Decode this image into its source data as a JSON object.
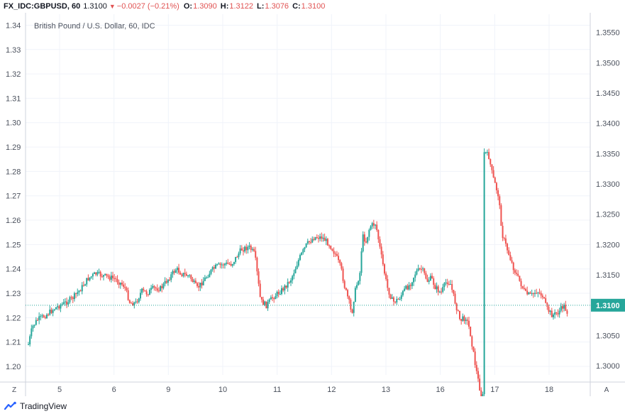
{
  "header": {
    "symbol": "FX_IDC:GBPUSD, 60",
    "last": "1.3100",
    "change": "−0.0027 (−0.21%)",
    "o_label": "O:",
    "o": "1.3090",
    "h_label": "H:",
    "h": "1.3122",
    "l_label": "L:",
    "l": "1.3076",
    "c_label": "C:",
    "c": "1.3100"
  },
  "footer": {
    "brand": "TradingView"
  },
  "colors": {
    "up": "#26a69a",
    "down": "#ef5350",
    "grid": "#f0f3fa",
    "axis": "#cfd3dc",
    "price_line": "#26a69a",
    "text": "#4c525e"
  },
  "icons": {
    "logo": "tradingview-logo-icon",
    "down_arrow": "triangle-down-icon"
  },
  "chart_data": {
    "type": "candlestick",
    "title": "British Pound / U.S. Dollar, 60, IDC",
    "x_ticks": [
      "5",
      "6",
      "9",
      "10",
      "11",
      "12",
      "13",
      "16",
      "17",
      "18"
    ],
    "left_axis": {
      "ticks": [
        "1.20",
        "1.21",
        "1.22",
        "1.23",
        "1.24",
        "1.25",
        "1.26",
        "1.27",
        "1.28",
        "1.29",
        "1.30",
        "1.31",
        "1.32",
        "1.33",
        "1.34"
      ],
      "range": [
        1.1965,
        1.3445
      ]
    },
    "right_axis": {
      "ticks": [
        "1.3000",
        "1.3050",
        "1.3100",
        "1.3150",
        "1.3200",
        "1.3250",
        "1.3300",
        "1.3350",
        "1.3400",
        "1.3450",
        "1.3500",
        "1.3550"
      ],
      "range": [
        1.2985,
        1.358
      ]
    },
    "last_price": "1.3100",
    "last_price_value": 1.31,
    "left_price_value": 1.2205,
    "scale_corner_left": "Z",
    "scale_corner_right": "A",
    "series_path": [
      [
        0,
        1.209
      ],
      [
        4,
        1.216
      ],
      [
        9,
        1.219
      ],
      [
        18,
        1.221
      ],
      [
        28,
        1.224
      ],
      [
        38,
        1.226
      ],
      [
        46,
        1.228
      ],
      [
        55,
        1.232
      ],
      [
        62,
        1.236
      ],
      [
        70,
        1.238
      ],
      [
        80,
        1.237
      ],
      [
        90,
        1.236
      ],
      [
        100,
        1.233
      ],
      [
        106,
        1.226
      ],
      [
        112,
        1.226
      ],
      [
        118,
        1.231
      ],
      [
        124,
        1.23
      ],
      [
        130,
        1.232
      ],
      [
        138,
        1.232
      ],
      [
        146,
        1.236
      ],
      [
        154,
        1.24
      ],
      [
        160,
        1.238
      ],
      [
        168,
        1.237
      ],
      [
        176,
        1.232
      ],
      [
        184,
        1.236
      ],
      [
        190,
        1.239
      ],
      [
        196,
        1.241
      ],
      [
        204,
        1.242
      ],
      [
        212,
        1.242
      ],
      [
        222,
        1.248
      ],
      [
        230,
        1.249
      ],
      [
        236,
        1.246
      ],
      [
        242,
        1.227
      ],
      [
        248,
        1.225
      ],
      [
        254,
        1.228
      ],
      [
        260,
        1.23
      ],
      [
        266,
        1.232
      ],
      [
        274,
        1.236
      ],
      [
        282,
        1.244
      ],
      [
        290,
        1.25
      ],
      [
        298,
        1.253
      ],
      [
        306,
        1.253
      ],
      [
        314,
        1.25
      ],
      [
        320,
        1.246
      ],
      [
        326,
        1.24
      ],
      [
        330,
        1.232
      ],
      [
        334,
        1.227
      ],
      [
        337,
        1.221
      ],
      [
        340,
        1.23
      ],
      [
        344,
        1.236
      ],
      [
        346,
        1.239
      ],
      [
        348,
        1.3215
      ],
      [
        352,
        1.3205
      ],
      [
        356,
        1.323
      ],
      [
        362,
        1.3235
      ],
      [
        368,
        1.318
      ],
      [
        374,
        1.313
      ],
      [
        380,
        1.3105
      ],
      [
        386,
        1.311
      ],
      [
        392,
        1.3125
      ],
      [
        398,
        1.3135
      ],
      [
        404,
        1.3155
      ],
      [
        410,
        1.316
      ],
      [
        416,
        1.314
      ],
      [
        420,
        1.3145
      ],
      [
        424,
        1.313
      ],
      [
        430,
        1.312
      ],
      [
        436,
        1.314
      ],
      [
        440,
        1.3135
      ],
      [
        444,
        1.311
      ],
      [
        450,
        1.3075
      ],
      [
        456,
        1.308
      ],
      [
        460,
        1.306
      ],
      [
        466,
        1.3
      ],
      [
        472,
        1.295
      ],
      [
        476,
        1.288
      ],
      [
        480,
        1.286
      ],
      [
        484,
        1.278
      ],
      [
        490,
        1.27
      ],
      [
        494,
        1.254
      ],
      [
        500,
        1.247
      ],
      [
        506,
        1.24
      ],
      [
        512,
        1.235
      ],
      [
        518,
        1.23
      ],
      [
        524,
        1.229
      ],
      [
        530,
        1.231
      ],
      [
        536,
        1.229
      ],
      [
        540,
        1.224
      ],
      [
        546,
        1.221
      ],
      [
        552,
        1.222
      ],
      [
        558,
        1.225
      ],
      [
        562,
        1.222
      ]
    ]
  }
}
